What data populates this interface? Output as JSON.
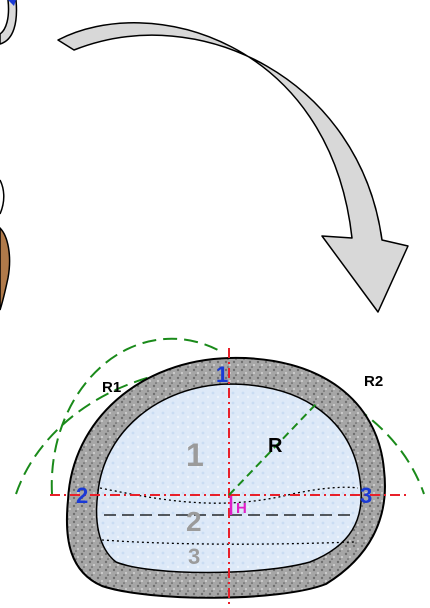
{
  "diagram": {
    "section_labels": [
      "1",
      "2",
      "3"
    ],
    "point_labels": [
      "1",
      "2",
      "3"
    ],
    "radius_labels": {
      "r": "R",
      "r1": "R1",
      "r2": "R2"
    },
    "height_label": "H",
    "colors": {
      "lining": "#9a9a9a",
      "interior": "#dbe8f8",
      "axis": "#e8202a",
      "arc": "#1a8a1a",
      "point_label": "#1a3ad6",
      "section_label": "#9b9b9b",
      "height_label": "#e020c8",
      "arrow_fill": "#d8d8d8",
      "rock": "#b07a4a"
    }
  }
}
